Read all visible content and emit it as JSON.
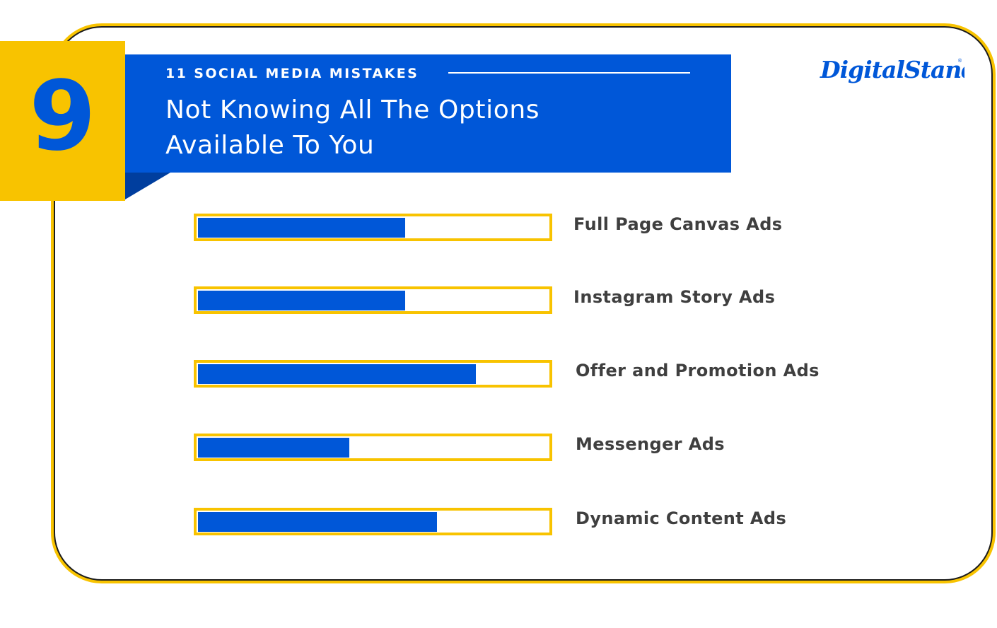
{
  "badge": {
    "number": "9"
  },
  "header": {
    "kicker": "11 SOCIAL MEDIA MISTAKES",
    "headline_line1": "Not Knowing All The Options",
    "headline_line2": "Available To You"
  },
  "logo": {
    "text": "DigitalStand",
    "reg": "®"
  },
  "colors": {
    "brand_blue": "#0057d8",
    "accent_yellow": "#f8c300",
    "label_gray": "#3f3f3f"
  },
  "chart_data": {
    "type": "bar",
    "orientation": "horizontal",
    "categories": [
      "Full Page Canvas Ads",
      "Instagram Story Ads",
      "Offer and Promotion Ads",
      "Messenger Ads",
      "Dynamic Content Ads"
    ],
    "values": [
      0.59,
      0.59,
      0.79,
      0.43,
      0.68
    ],
    "xlim": [
      0,
      1
    ],
    "title": "",
    "xlabel": "",
    "ylabel": "",
    "grid": false,
    "legend": "none"
  }
}
